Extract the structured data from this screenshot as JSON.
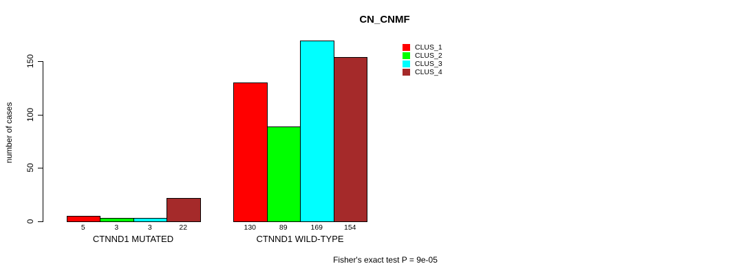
{
  "title": "CN_CNMF",
  "annotation": "Fisher's exact test P = 9e-05",
  "chart_data": {
    "type": "bar",
    "title": "CN_CNMF",
    "xlabel": "",
    "ylabel": "number of cases",
    "ylim": [
      0,
      150
    ],
    "yticks": [
      0,
      50,
      100,
      150
    ],
    "categories": [
      "CTNND1 MUTATED",
      "CTNND1 WILD-TYPE"
    ],
    "series": [
      {
        "name": "CLUS_1",
        "color": "#ff0000",
        "values": [
          5,
          130
        ]
      },
      {
        "name": "CLUS_2",
        "color": "#00ff00",
        "values": [
          3,
          89
        ]
      },
      {
        "name": "CLUS_3",
        "color": "#00ffff",
        "values": [
          3,
          169
        ]
      },
      {
        "name": "CLUS_4",
        "color": "#a52a2a",
        "values": [
          22,
          154
        ]
      }
    ],
    "bar_value_labels": [
      [
        "5",
        "3",
        "3",
        "22"
      ],
      [
        "130",
        "89",
        "169",
        "154"
      ]
    ],
    "legend_position": "top-right",
    "grid": false,
    "annotation": "Fisher's exact test P = 9e-05"
  }
}
